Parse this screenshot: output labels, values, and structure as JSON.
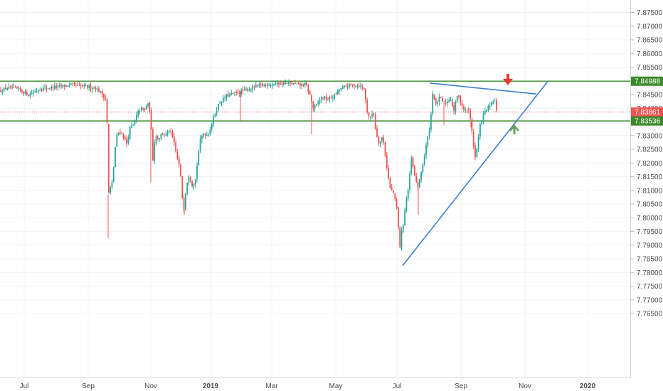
{
  "chart_data": {
    "type": "candlestick",
    "y_axis": {
      "side": "right",
      "range": [
        7.7625,
        7.8785
      ],
      "ticks": [
        "7.87500",
        "7.87000",
        "7.86500",
        "7.86000",
        "7.85500",
        "7.85000",
        "7.84500",
        "7.84000",
        "7.83000",
        "7.82500",
        "7.82000",
        "7.81500",
        "7.81000",
        "7.80500",
        "7.80000",
        "7.79500",
        "7.79000",
        "7.78500",
        "7.78000",
        "7.77500",
        "7.77000",
        "7.76500"
      ]
    },
    "x_axis": {
      "ticks": [
        {
          "label": "Jul",
          "major": false
        },
        {
          "label": "Sep",
          "major": false
        },
        {
          "label": "Nov",
          "major": false
        },
        {
          "label": "2019",
          "major": true
        },
        {
          "label": "Mar",
          "major": false
        },
        {
          "label": "May",
          "major": false
        },
        {
          "label": "Jul",
          "major": false
        },
        {
          "label": "Sep",
          "major": false
        },
        {
          "label": "Nov",
          "major": false
        },
        {
          "label": "2020",
          "major": true
        }
      ]
    },
    "grid": true,
    "colors": {
      "up": "#26a69a",
      "down": "#ef5350",
      "level": "#3a8a2a",
      "trend": "#3a7fd5",
      "current": "#ef5350",
      "arrow_down": "#e83a30",
      "arrow_up": "#6e9e5c"
    },
    "horizontal_levels": [
      {
        "value": 7.84988,
        "label": "7.84988"
      },
      {
        "value": 7.83536,
        "label": "7.83536"
      }
    ],
    "current_price": {
      "value": 7.83861,
      "label": "7.83861"
    },
    "close_path": [
      [
        0,
        7.8462
      ],
      [
        10,
        7.8475
      ],
      [
        25,
        7.847
      ],
      [
        40,
        7.845
      ],
      [
        55,
        7.847
      ],
      [
        70,
        7.8475
      ],
      [
        85,
        7.848
      ],
      [
        100,
        7.8485
      ],
      [
        115,
        7.848
      ],
      [
        125,
        7.8478
      ],
      [
        135,
        7.8474
      ],
      [
        142,
        7.8455
      ],
      [
        150,
        7.843
      ],
      [
        152,
        7.8085
      ],
      [
        154,
        7.81
      ],
      [
        158,
        7.813
      ],
      [
        163,
        7.829
      ],
      [
        168,
        7.832
      ],
      [
        173,
        7.83
      ],
      [
        178,
        7.827
      ],
      [
        183,
        7.833
      ],
      [
        188,
        7.834
      ],
      [
        193,
        7.838
      ],
      [
        198,
        7.84
      ],
      [
        203,
        7.839
      ],
      [
        207,
        7.842
      ],
      [
        211,
        7.839
      ],
      [
        213,
        7.83
      ],
      [
        215,
        7.821
      ],
      [
        218,
        7.83
      ],
      [
        223,
        7.829
      ],
      [
        228,
        7.831
      ],
      [
        233,
        7.83
      ],
      [
        238,
        7.832
      ],
      [
        243,
        7.829
      ],
      [
        248,
        7.823
      ],
      [
        253,
        7.818
      ],
      [
        258,
        7.802
      ],
      [
        262,
        7.812
      ],
      [
        266,
        7.816
      ],
      [
        270,
        7.812
      ],
      [
        275,
        7.814
      ],
      [
        278,
        7.822
      ],
      [
        282,
        7.829
      ],
      [
        287,
        7.831
      ],
      [
        292,
        7.83
      ],
      [
        297,
        7.834
      ],
      [
        302,
        7.838
      ],
      [
        308,
        7.842
      ],
      [
        313,
        7.843
      ],
      [
        318,
        7.8445
      ],
      [
        325,
        7.845
      ],
      [
        332,
        7.8455
      ],
      [
        340,
        7.8462
      ],
      [
        350,
        7.847
      ],
      [
        360,
        7.848
      ],
      [
        370,
        7.8485
      ],
      [
        380,
        7.8488
      ],
      [
        390,
        7.849
      ],
      [
        400,
        7.8492
      ],
      [
        410,
        7.849
      ],
      [
        420,
        7.8485
      ],
      [
        430,
        7.8488
      ],
      [
        436,
        7.8445
      ],
      [
        440,
        7.84
      ],
      [
        445,
        7.841
      ],
      [
        450,
        7.8435
      ],
      [
        455,
        7.844
      ],
      [
        460,
        7.843
      ],
      [
        465,
        7.844
      ],
      [
        470,
        7.8445
      ],
      [
        478,
        7.847
      ],
      [
        485,
        7.848
      ],
      [
        495,
        7.8485
      ],
      [
        505,
        7.8484
      ],
      [
        512,
        7.847
      ],
      [
        516,
        7.839
      ],
      [
        520,
        7.836
      ],
      [
        525,
        7.839
      ],
      [
        528,
        7.832
      ],
      [
        533,
        7.827
      ],
      [
        538,
        7.83
      ],
      [
        543,
        7.82
      ],
      [
        548,
        7.811
      ],
      [
        553,
        7.809
      ],
      [
        558,
        7.803
      ],
      [
        562,
        7.789
      ],
      [
        564,
        7.794
      ],
      [
        567,
        7.798
      ],
      [
        570,
        7.805
      ],
      [
        575,
        7.812
      ],
      [
        578,
        7.822
      ],
      [
        583,
        7.815
      ],
      [
        588,
        7.811
      ],
      [
        593,
        7.818
      ],
      [
        597,
        7.823
      ],
      [
        600,
        7.828
      ],
      [
        603,
        7.831
      ],
      [
        606,
        7.838
      ],
      [
        608,
        7.846
      ],
      [
        613,
        7.841
      ],
      [
        618,
        7.844
      ],
      [
        623,
        7.842
      ],
      [
        628,
        7.842
      ],
      [
        633,
        7.844
      ],
      [
        638,
        7.839
      ],
      [
        643,
        7.845
      ],
      [
        648,
        7.842
      ],
      [
        653,
        7.839
      ],
      [
        658,
        7.84
      ],
      [
        662,
        7.835
      ],
      [
        665,
        7.828
      ],
      [
        668,
        7.822
      ],
      [
        671,
        7.826
      ],
      [
        675,
        7.834
      ],
      [
        680,
        7.838
      ],
      [
        685,
        7.84
      ],
      [
        690,
        7.841
      ],
      [
        695,
        7.8435
      ],
      [
        698,
        7.8386
      ]
    ],
    "trendlines": [
      {
        "name": "resistance-trendline",
        "from": [
          604,
          7.8492
        ],
        "to": [
          754,
          7.8452
        ]
      },
      {
        "name": "rising-support-trendline",
        "from": [
          566,
          7.7825
        ],
        "to": [
          770,
          7.8498
        ]
      }
    ],
    "arrows": [
      {
        "dir": "down",
        "at": [
          714,
          7.8497
        ]
      },
      {
        "dir": "up",
        "at": [
          723,
          7.832
        ]
      }
    ]
  }
}
